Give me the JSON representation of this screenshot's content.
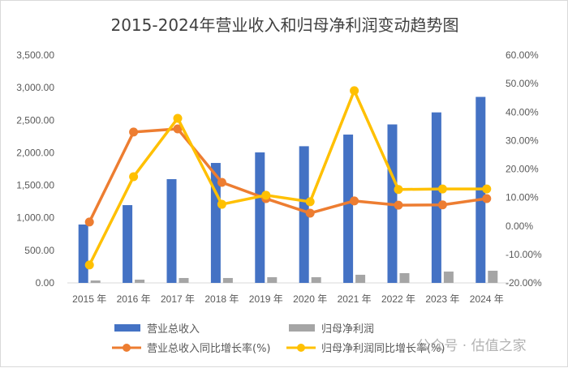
{
  "chart_data": {
    "type": "bar+line",
    "title": "2015-2024年营业收入和归母净利润变动趋势图",
    "categories": [
      "2015 年",
      "2016 年",
      "2017 年",
      "2018 年",
      "2019 年",
      "2020 年",
      "2021 年",
      "2022 年",
      "2023 年",
      "2024 年"
    ],
    "series": [
      {
        "name": "营业总收入",
        "type": "bar",
        "axis": "left",
        "color": "#4472C4",
        "values": [
          897,
          1195,
          1594,
          1843,
          2005,
          2100,
          2279,
          2435,
          2620,
          2858
        ]
      },
      {
        "name": "归母净利润",
        "type": "bar",
        "axis": "left",
        "color": "#A5A5A5",
        "values": [
          37,
          50,
          75,
          75,
          87,
          87,
          125,
          150,
          174,
          187
        ]
      },
      {
        "name": "营业总收入同比增长率(%)",
        "type": "line",
        "axis": "right",
        "color": "#ED7D31",
        "values": [
          1.4,
          33.0,
          34.1,
          15.3,
          9.6,
          4.5,
          8.8,
          7.3,
          7.4,
          9.6
        ]
      },
      {
        "name": "归母净利润同比增长率(%)",
        "type": "line",
        "axis": "right",
        "color": "#FFC000",
        "values": [
          -13.7,
          17.3,
          37.8,
          7.6,
          10.8,
          8.5,
          47.5,
          12.8,
          13.0,
          13.0
        ]
      }
    ],
    "left_axis": {
      "ylim": [
        0,
        3500
      ],
      "ticks": [
        "0.00",
        "500.00",
        "1,000.00",
        "1,500.00",
        "2,000.00",
        "2,500.00",
        "3,000.00",
        "3,500.00"
      ]
    },
    "right_axis": {
      "ylim": [
        -20,
        60
      ],
      "ticks": [
        "-20.00%",
        "-10.00%",
        "0.00%",
        "10.00%",
        "20.00%",
        "30.00%",
        "40.00%",
        "50.00%",
        "60.00%"
      ]
    },
    "legend_placement": "bottom",
    "grid": false
  },
  "watermark": "公众号 · 估值之家"
}
